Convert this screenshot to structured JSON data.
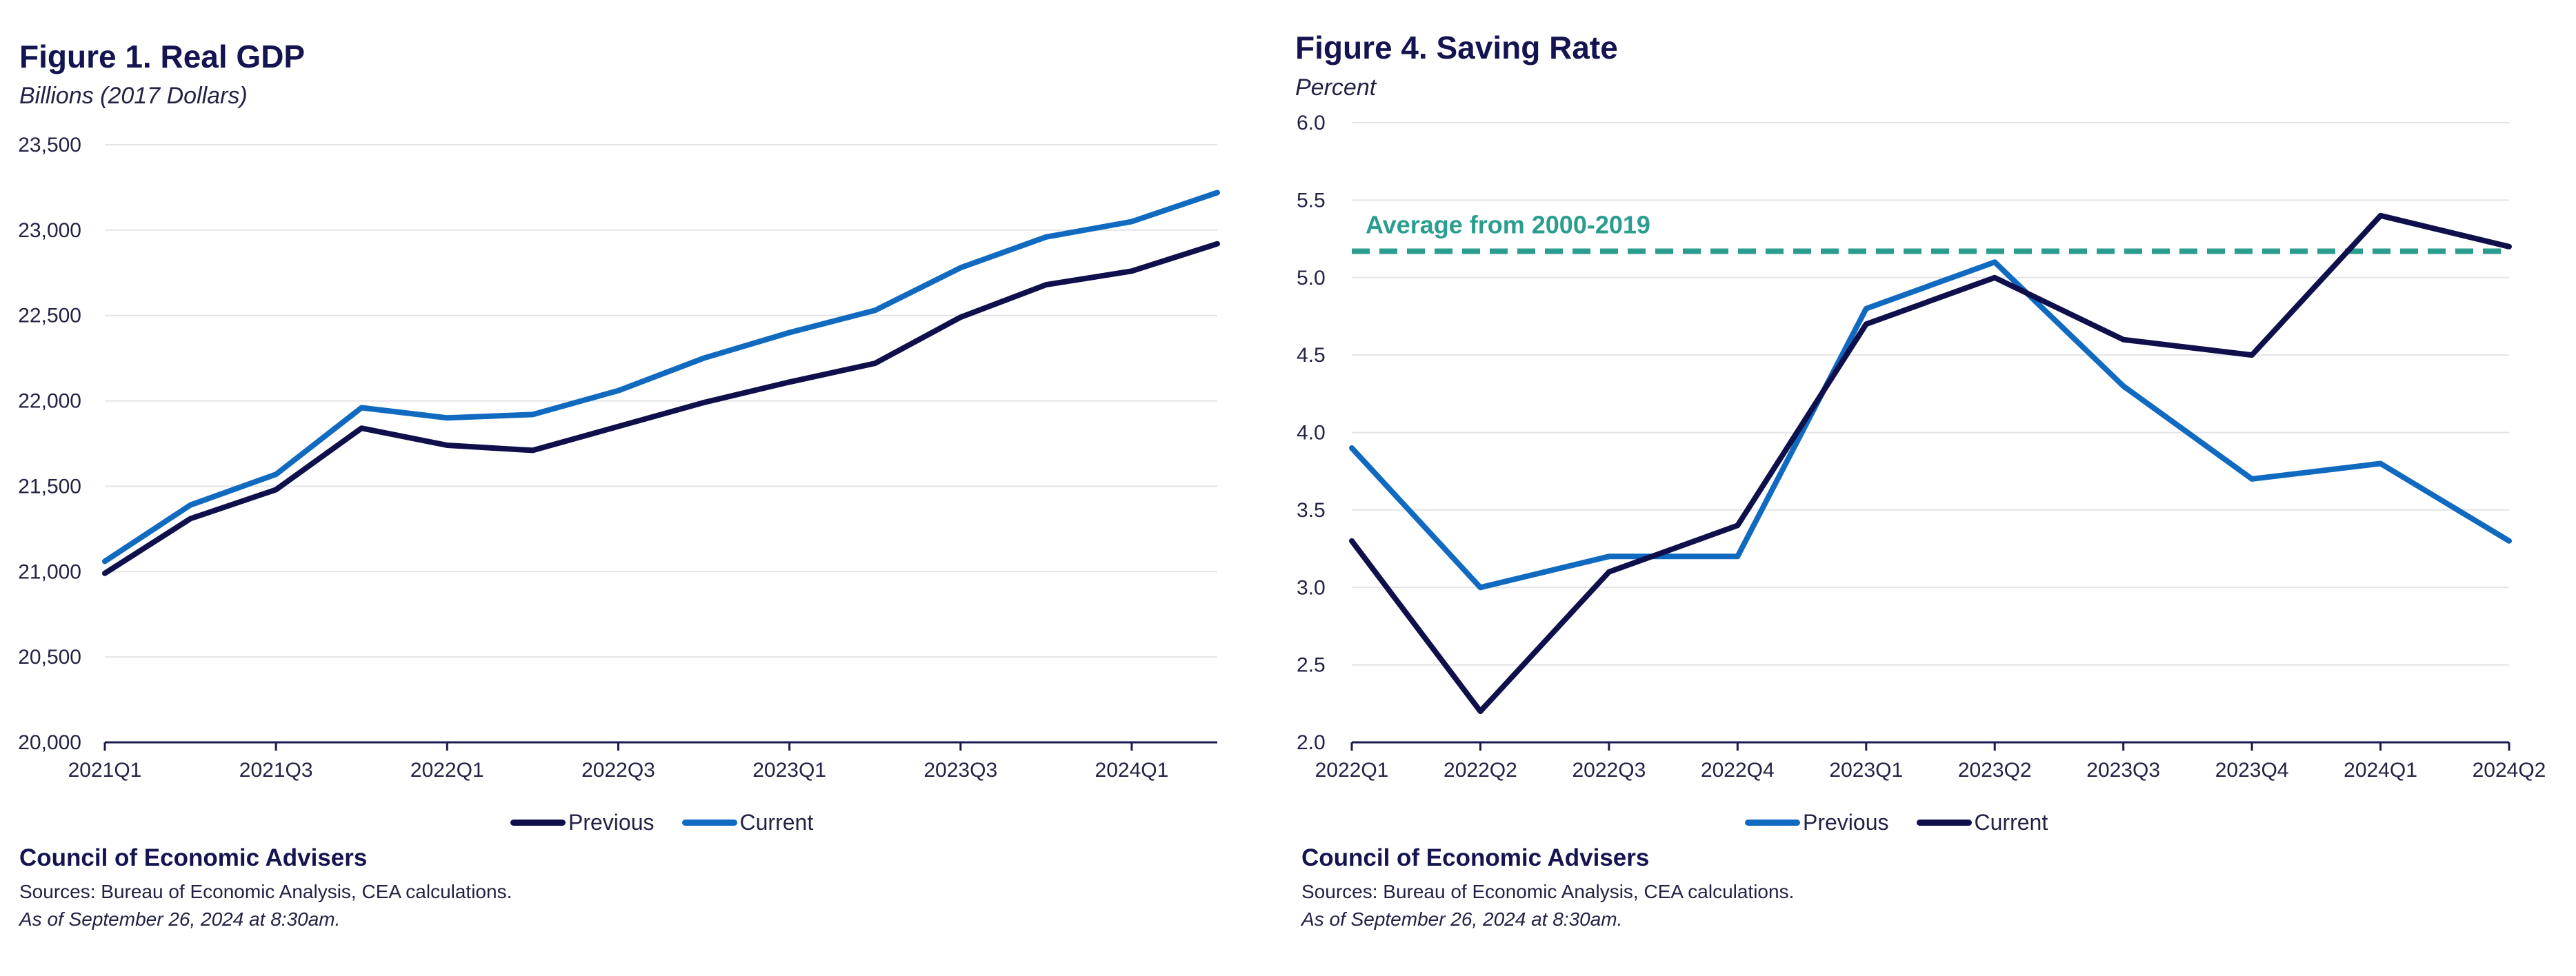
{
  "colors": {
    "dark_navy": "#0f0f4b",
    "bright_blue": "#0f6ac0",
    "teal": "#2a9d8f",
    "grid": "#e4e4e8",
    "axis": "#1a1a4e"
  },
  "left": {
    "title": "Figure 1. Real GDP",
    "subtitle": "Billions (2017 Dollars)",
    "org": "Council of Economic Advisers",
    "sources": "Sources: Bureau of Economic Analysis, CEA calculations.",
    "asof": "As of September 26, 2024 at 8:30am.",
    "legend": [
      {
        "label": "Previous",
        "color": "#0f0f4b"
      },
      {
        "label": "Current",
        "color": "#0f6ac0"
      }
    ]
  },
  "right": {
    "title": "Figure 4. Saving Rate",
    "subtitle": "Percent",
    "org": "Council of Economic Advisers",
    "sources": "Sources: Bureau of Economic Analysis, CEA calculations.",
    "asof": "As of September 26, 2024 at 8:30am.",
    "annotation": "Average from 2000-2019",
    "legend": [
      {
        "label": "Previous",
        "color": "#0f6ac0"
      },
      {
        "label": "Current",
        "color": "#0f0f4b"
      }
    ]
  },
  "chart_data": [
    {
      "type": "line",
      "title": "Figure 1. Real GDP",
      "ylabel": "Billions (2017 Dollars)",
      "ylim": [
        20000,
        23500
      ],
      "yticks": [
        20000,
        20500,
        21000,
        21500,
        22000,
        22500,
        23000,
        23500
      ],
      "ytick_labels": [
        "20,000",
        "20,500",
        "21,000",
        "21,500",
        "22,000",
        "22,500",
        "23,000",
        "23,500"
      ],
      "x": [
        "2021Q1",
        "2021Q2",
        "2021Q3",
        "2021Q4",
        "2022Q1",
        "2022Q2",
        "2022Q3",
        "2022Q4",
        "2023Q1",
        "2023Q2",
        "2023Q3",
        "2023Q4",
        "2024Q1",
        "2024Q2"
      ],
      "xtick_labels": [
        "2021Q1",
        "2021Q3",
        "2022Q1",
        "2022Q3",
        "2023Q1",
        "2023Q3",
        "2024Q1"
      ],
      "grid": true,
      "legend_position": "bottom",
      "series": [
        {
          "name": "Previous",
          "color": "#0f0f4b",
          "values": [
            20990,
            21310,
            21480,
            21840,
            21740,
            21710,
            21850,
            21990,
            22110,
            22220,
            22490,
            22680,
            22760,
            22920
          ]
        },
        {
          "name": "Current",
          "color": "#0f6ac0",
          "values": [
            21060,
            21390,
            21570,
            21960,
            21900,
            21920,
            22060,
            22250,
            22400,
            22530,
            22780,
            22960,
            23050,
            23220
          ]
        }
      ]
    },
    {
      "type": "line",
      "title": "Figure 4. Saving Rate",
      "ylabel": "Percent",
      "ylim": [
        2.0,
        6.0
      ],
      "yticks": [
        2.0,
        2.5,
        3.0,
        3.5,
        4.0,
        4.5,
        5.0,
        5.5,
        6.0
      ],
      "ytick_labels": [
        "2.0",
        "2.5",
        "3.0",
        "3.5",
        "4.0",
        "4.5",
        "5.0",
        "5.5",
        "6.0"
      ],
      "x": [
        "2022Q1",
        "2022Q2",
        "2022Q3",
        "2022Q4",
        "2023Q1",
        "2023Q2",
        "2023Q3",
        "2023Q4",
        "2024Q1",
        "2024Q2"
      ],
      "xtick_labels": [
        "2022Q1",
        "2022Q2",
        "2022Q3",
        "2022Q4",
        "2023Q1",
        "2023Q2",
        "2023Q3",
        "2023Q4",
        "2024Q1",
        "2024Q2"
      ],
      "grid": true,
      "legend_position": "bottom",
      "reference_line": {
        "label": "Average from 2000-2019",
        "value": 5.17,
        "color": "#2a9d8f",
        "style": "dashed"
      },
      "series": [
        {
          "name": "Previous",
          "color": "#0f6ac0",
          "values": [
            3.9,
            3.0,
            3.2,
            3.2,
            4.8,
            5.1,
            4.3,
            3.7,
            3.8,
            3.3
          ]
        },
        {
          "name": "Current",
          "color": "#0f0f4b",
          "values": [
            3.3,
            2.2,
            3.1,
            3.4,
            4.7,
            5.0,
            4.6,
            4.5,
            5.4,
            5.2
          ]
        }
      ]
    }
  ]
}
